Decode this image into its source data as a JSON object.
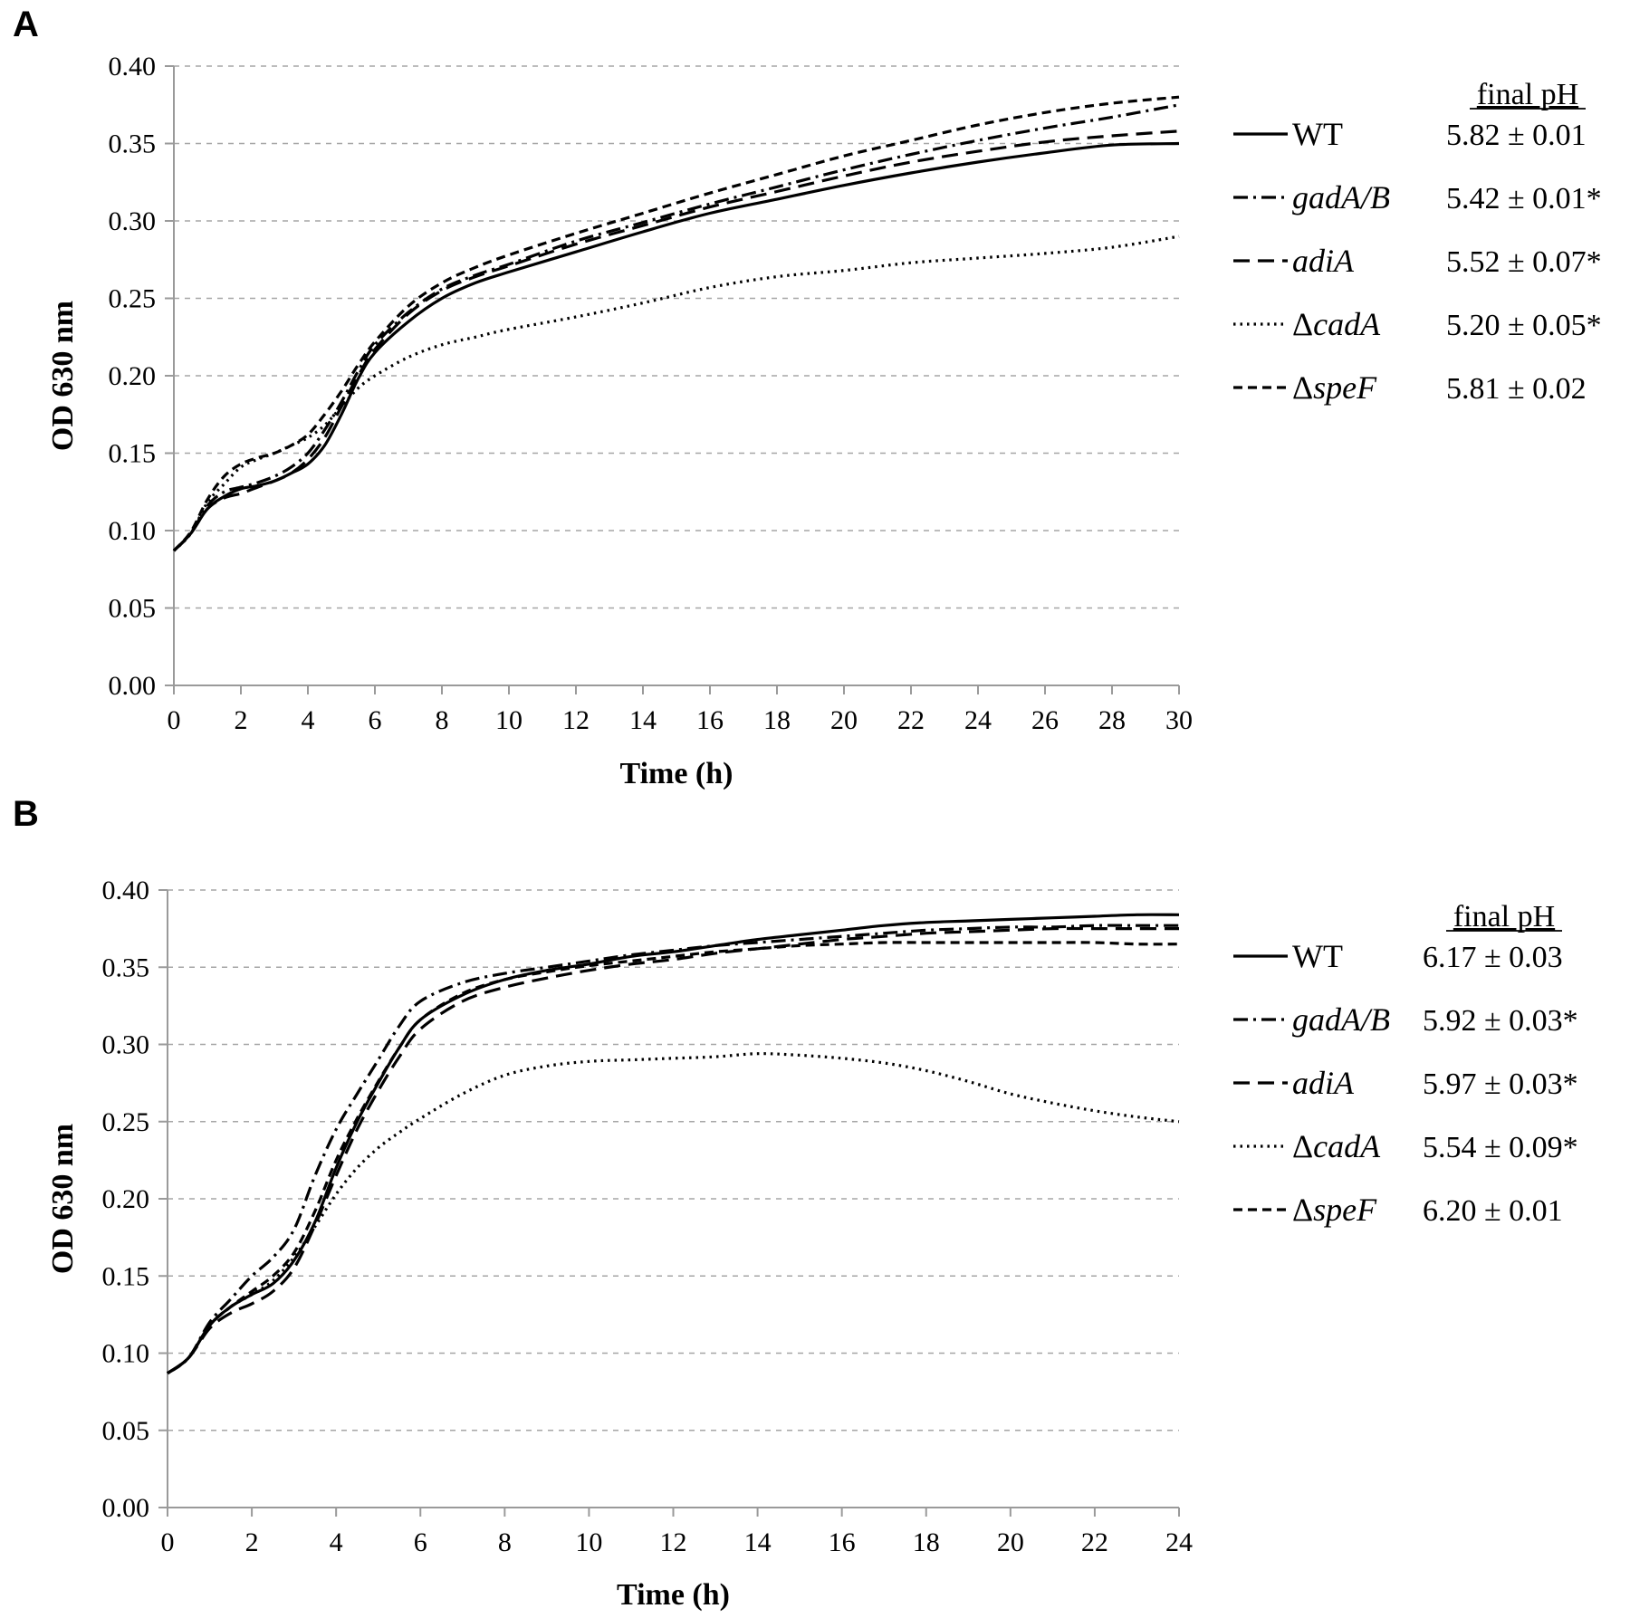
{
  "chart_data": [
    {
      "panel": "A",
      "type": "line",
      "title": "",
      "xlabel": "Time (h)",
      "ylabel": "OD 630 nm",
      "xlim": [
        0,
        30
      ],
      "ylim": [
        0,
        0.4
      ],
      "xticks": [
        "0",
        "2",
        "4",
        "6",
        "8",
        "10",
        "12",
        "14",
        "16",
        "18",
        "20",
        "22",
        "24",
        "26",
        "28",
        "30"
      ],
      "yticks": [
        "0.00",
        "0.05",
        "0.10",
        "0.15",
        "0.20",
        "0.25",
        "0.30",
        "0.35",
        "0.40"
      ],
      "legend_header": "final pH",
      "x": [
        0,
        0.5,
        1,
        1.5,
        2,
        2.5,
        3,
        3.5,
        4,
        4.5,
        5,
        5.5,
        6,
        7,
        8,
        9,
        10,
        12,
        14,
        16,
        18,
        20,
        22,
        24,
        26,
        28,
        30
      ],
      "series": [
        {
          "name": "WT",
          "label_prefix": "",
          "italic": false,
          "dash": "solid",
          "final_pH": "5.82 ± 0.01",
          "values": [
            0.087,
            0.098,
            0.114,
            0.122,
            0.127,
            0.129,
            0.132,
            0.137,
            0.143,
            0.155,
            0.175,
            0.198,
            0.215,
            0.235,
            0.25,
            0.26,
            0.267,
            0.28,
            0.293,
            0.305,
            0.314,
            0.323,
            0.331,
            0.338,
            0.344,
            0.349,
            0.35
          ]
        },
        {
          "name": "gadA/B",
          "label_prefix": "",
          "italic": true,
          "dash": "dashdot",
          "final_pH": "5.42 ± 0.01*",
          "values": [
            0.087,
            0.098,
            0.116,
            0.125,
            0.128,
            0.131,
            0.135,
            0.141,
            0.15,
            0.165,
            0.183,
            0.203,
            0.22,
            0.241,
            0.256,
            0.265,
            0.272,
            0.287,
            0.299,
            0.311,
            0.322,
            0.333,
            0.343,
            0.352,
            0.36,
            0.367,
            0.375
          ]
        },
        {
          "name": "adiA",
          "label_prefix": "",
          "italic": true,
          "dash": "longdash",
          "final_pH": "5.52 ± 0.07*",
          "values": [
            0.087,
            0.098,
            0.114,
            0.121,
            0.124,
            0.128,
            0.132,
            0.137,
            0.146,
            0.16,
            0.18,
            0.2,
            0.217,
            0.24,
            0.255,
            0.264,
            0.271,
            0.285,
            0.297,
            0.309,
            0.319,
            0.329,
            0.338,
            0.345,
            0.351,
            0.355,
            0.358
          ]
        },
        {
          "name": "cadA",
          "label_prefix": "Δ",
          "italic": true,
          "dash": "dotted",
          "final_pH": "5.20 ± 0.05*",
          "values": [
            0.087,
            0.098,
            0.118,
            0.13,
            0.141,
            0.146,
            0.15,
            0.155,
            0.16,
            0.168,
            0.18,
            0.192,
            0.2,
            0.212,
            0.22,
            0.225,
            0.23,
            0.238,
            0.247,
            0.257,
            0.264,
            0.268,
            0.273,
            0.276,
            0.279,
            0.283,
            0.29
          ]
        },
        {
          "name": "speF",
          "label_prefix": "Δ",
          "italic": true,
          "dash": "dashed",
          "final_pH": "5.81 ± 0.02",
          "values": [
            0.087,
            0.099,
            0.12,
            0.135,
            0.143,
            0.147,
            0.15,
            0.155,
            0.162,
            0.175,
            0.19,
            0.207,
            0.222,
            0.245,
            0.26,
            0.27,
            0.278,
            0.292,
            0.305,
            0.318,
            0.33,
            0.342,
            0.352,
            0.362,
            0.37,
            0.376,
            0.38
          ]
        }
      ]
    },
    {
      "panel": "B",
      "type": "line",
      "title": "",
      "xlabel": "Time (h)",
      "ylabel": "OD 630 nm",
      "xlim": [
        0,
        24
      ],
      "ylim": [
        0,
        0.4
      ],
      "xticks": [
        "0",
        "2",
        "4",
        "6",
        "8",
        "10",
        "12",
        "14",
        "16",
        "18",
        "20",
        "22",
        "24"
      ],
      "yticks": [
        "0.00",
        "0.05",
        "0.10",
        "0.15",
        "0.20",
        "0.25",
        "0.30",
        "0.35",
        "0.40"
      ],
      "legend_header": "final pH",
      "x": [
        0,
        0.5,
        1,
        1.5,
        2,
        2.5,
        3,
        3.5,
        4,
        4.5,
        5,
        5.5,
        6,
        7,
        8,
        9,
        10,
        11,
        12,
        13,
        14,
        15,
        16,
        17,
        18,
        19,
        20,
        21,
        22,
        23,
        24
      ],
      "series": [
        {
          "name": "WT",
          "label_prefix": "",
          "italic": false,
          "dash": "solid",
          "final_pH": "6.17 ± 0.03",
          "values": [
            0.087,
            0.097,
            0.118,
            0.13,
            0.138,
            0.145,
            0.16,
            0.185,
            0.22,
            0.25,
            0.275,
            0.298,
            0.316,
            0.332,
            0.342,
            0.348,
            0.352,
            0.357,
            0.36,
            0.364,
            0.368,
            0.371,
            0.374,
            0.377,
            0.379,
            0.38,
            0.381,
            0.382,
            0.383,
            0.384,
            0.384
          ]
        },
        {
          "name": "gadA/B",
          "label_prefix": "",
          "italic": true,
          "dash": "dashdot",
          "final_pH": "5.92 ± 0.03*",
          "values": [
            0.087,
            0.097,
            0.12,
            0.135,
            0.15,
            0.162,
            0.18,
            0.215,
            0.245,
            0.268,
            0.29,
            0.312,
            0.328,
            0.34,
            0.346,
            0.35,
            0.354,
            0.358,
            0.361,
            0.364,
            0.366,
            0.368,
            0.37,
            0.372,
            0.374,
            0.375,
            0.376,
            0.376,
            0.377,
            0.377,
            0.377
          ]
        },
        {
          "name": "adiA",
          "label_prefix": "",
          "italic": true,
          "dash": "longdash",
          "final_pH": "5.97 ± 0.03*",
          "values": [
            0.087,
            0.097,
            0.116,
            0.126,
            0.132,
            0.14,
            0.155,
            0.183,
            0.215,
            0.245,
            0.27,
            0.292,
            0.31,
            0.328,
            0.337,
            0.343,
            0.348,
            0.352,
            0.355,
            0.359,
            0.362,
            0.365,
            0.368,
            0.37,
            0.372,
            0.373,
            0.374,
            0.375,
            0.375,
            0.375,
            0.375
          ]
        },
        {
          "name": "cadA",
          "label_prefix": "Δ",
          "italic": true,
          "dash": "dotted",
          "final_pH": "5.54 ± 0.09*",
          "values": [
            0.087,
            0.097,
            0.118,
            0.13,
            0.138,
            0.147,
            0.162,
            0.182,
            0.203,
            0.22,
            0.233,
            0.243,
            0.252,
            0.268,
            0.28,
            0.286,
            0.289,
            0.29,
            0.291,
            0.292,
            0.294,
            0.293,
            0.291,
            0.288,
            0.283,
            0.276,
            0.268,
            0.262,
            0.257,
            0.253,
            0.25
          ]
        },
        {
          "name": "speF",
          "label_prefix": "Δ",
          "italic": true,
          "dash": "dashed",
          "final_pH": "6.20 ± 0.01",
          "values": [
            0.087,
            0.097,
            0.118,
            0.13,
            0.14,
            0.15,
            0.165,
            0.192,
            0.225,
            0.252,
            0.276,
            0.298,
            0.316,
            0.333,
            0.342,
            0.347,
            0.351,
            0.354,
            0.357,
            0.36,
            0.362,
            0.364,
            0.365,
            0.366,
            0.366,
            0.366,
            0.366,
            0.366,
            0.366,
            0.365,
            0.365
          ]
        }
      ]
    }
  ]
}
